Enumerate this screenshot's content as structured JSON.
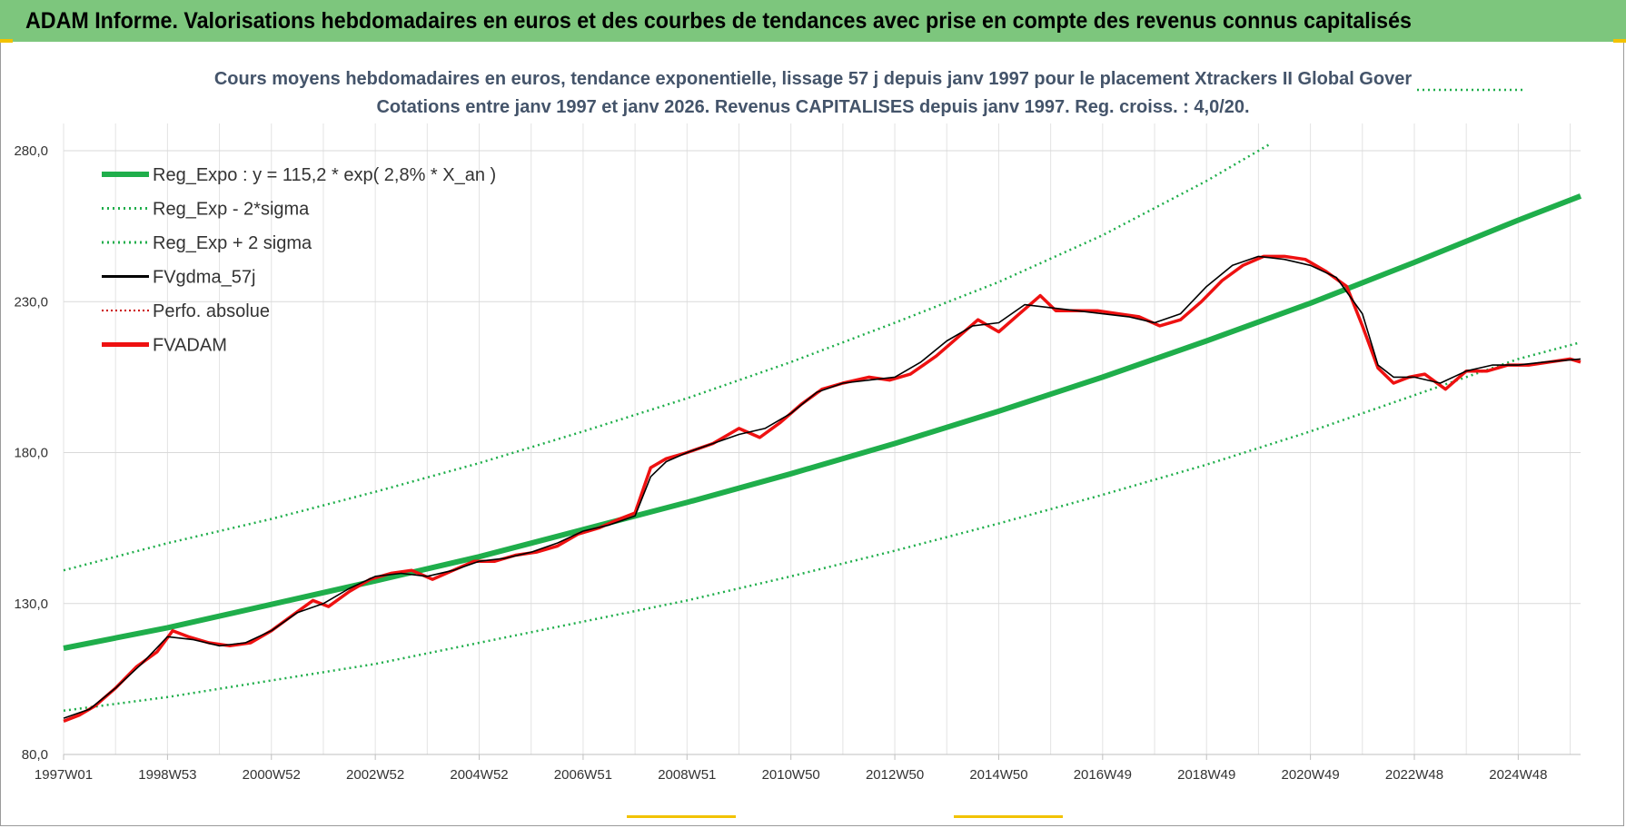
{
  "header": {
    "banner_title": "ADAM Informe. Valorisations hebdomadaires en euros et des courbes de tendances avec prise en compte des revenus connus capitalisés"
  },
  "colors": {
    "banner": "#7dc67d",
    "reg_expo": "#1fae4b",
    "fvadam": "#ee1111",
    "fvgdma": "#000000",
    "perfo": "#cc0000"
  },
  "chart_data": {
    "type": "line",
    "title": "Cours moyens hebdomadaires en euros, tendance exponentielle, lissage 57 j depuis janv 1997  pour le placement Xtrackers II Global Gover",
    "subtitle": "Cotations entre janv 1997 et janv 2026. Revenus CAPITALISES depuis janv 1997. Reg. croiss. : 4,0/20.",
    "x_tick_labels": [
      "1997W01",
      "1998W53",
      "2000W52",
      "2002W52",
      "2004W52",
      "2006W51",
      "2008W51",
      "2010W50",
      "2012W50",
      "2014W50",
      "2016W49",
      "2018W49",
      "2020W49",
      "2022W48",
      "2024W48"
    ],
    "x_range_years": [
      1997.0,
      2026.2
    ],
    "y_tick_labels": [
      "80,0",
      "130,0",
      "180,0",
      "230,0",
      "280,0"
    ],
    "y_ticks": [
      80,
      130,
      180,
      230,
      280
    ],
    "ylim": [
      80,
      280
    ],
    "grid": true,
    "legend_position": "top-left",
    "legend": [
      {
        "key": "reg_expo",
        "label": "Reg_Expo : y = 115,2 * exp( 2,8% *  X_an )",
        "style": "solid-thick"
      },
      {
        "key": "reg_minus",
        "label": "Reg_Exp - 2*sigma",
        "style": "dotted"
      },
      {
        "key": "reg_plus",
        "label": "Reg_Exp + 2 sigma",
        "style": "dotted"
      },
      {
        "key": "fvgdma",
        "label": "FVgdma_57j",
        "style": "solid-thin"
      },
      {
        "key": "perfo",
        "label": "Perfo. absolue",
        "style": "dotted-red"
      },
      {
        "key": "fvadam",
        "label": "FVADAM",
        "style": "solid-red"
      }
    ],
    "series": [
      {
        "key": "reg_expo",
        "name": "Reg_Expo : y = 115,2 * exp( 2,8% *  X_an )",
        "x": [
          1997,
          1999,
          2001,
          2003,
          2005,
          2007,
          2009,
          2011,
          2013,
          2015,
          2017,
          2019,
          2021,
          2023,
          2025,
          2026.2
        ],
        "y": [
          115.2,
          122.0,
          129.7,
          137.5,
          145.5,
          154.5,
          163.5,
          173.0,
          183.0,
          193.7,
          205.0,
          217.0,
          229.5,
          243.0,
          257.0,
          265.0
        ]
      },
      {
        "key": "reg_minus",
        "name": "Reg_Exp - 2*sigma",
        "x": [
          1997,
          1999,
          2001,
          2003,
          2005,
          2007,
          2009,
          2011,
          2013,
          2015,
          2017,
          2019,
          2021,
          2023,
          2025,
          2026.2
        ],
        "y": [
          94.5,
          99.0,
          104.5,
          110.0,
          117.0,
          124.0,
          131.0,
          139.0,
          147.5,
          156.5,
          166.0,
          176.0,
          187.0,
          199.0,
          211.0,
          216.5
        ]
      },
      {
        "key": "reg_plus",
        "name": "Reg_Exp + 2 sigma",
        "x": [
          1997,
          1999,
          2001,
          2003,
          2005,
          2007,
          2009,
          2011,
          2013,
          2015,
          2017,
          2019,
          2020.2
        ],
        "y": [
          141.0,
          150.0,
          158.0,
          167.0,
          176.5,
          187.0,
          198.0,
          210.0,
          223.0,
          236.5,
          252.0,
          270.0,
          282.0
        ]
      },
      {
        "key": "fvadam",
        "name": "FVADAM",
        "x": [
          1997.0,
          1997.3,
          1997.6,
          1998.0,
          1998.4,
          1998.8,
          1999.1,
          1999.4,
          1999.8,
          2000.2,
          2000.6,
          2001.0,
          2001.4,
          2001.8,
          2002.1,
          2002.5,
          2002.9,
          2003.3,
          2003.7,
          2004.1,
          2004.5,
          2004.9,
          2005.3,
          2005.7,
          2006.1,
          2006.5,
          2006.9,
          2007.3,
          2007.7,
          2008.0,
          2008.3,
          2008.6,
          2009.0,
          2009.5,
          2010.0,
          2010.4,
          2010.8,
          2011.2,
          2011.6,
          2012.0,
          2012.5,
          2012.9,
          2013.3,
          2013.8,
          2014.2,
          2014.6,
          2015.0,
          2015.4,
          2015.8,
          2016.1,
          2016.5,
          2016.9,
          2017.3,
          2017.7,
          2018.1,
          2018.5,
          2018.9,
          2019.3,
          2019.7,
          2020.1,
          2020.5,
          2020.9,
          2021.3,
          2021.7,
          2022.0,
          2022.3,
          2022.6,
          2022.9,
          2023.2,
          2023.6,
          2024.0,
          2024.4,
          2024.8,
          2025.2,
          2025.6,
          2026.0,
          2026.2
        ],
        "y": [
          91,
          93,
          96,
          102,
          109,
          114,
          121,
          119,
          117,
          116,
          117,
          121,
          126,
          131,
          129,
          134,
          138,
          140,
          141,
          138,
          141,
          144,
          144,
          146,
          147,
          149,
          153,
          155,
          158,
          160,
          175,
          178,
          180,
          183,
          188,
          185,
          190,
          196,
          201,
          203,
          205,
          204,
          206,
          212,
          218,
          224,
          220,
          226,
          232,
          227,
          227,
          227,
          226,
          225,
          222,
          224,
          230,
          237,
          242,
          245,
          245,
          244,
          240,
          235,
          222,
          208,
          203,
          205,
          206,
          201,
          207,
          207,
          209,
          209,
          210,
          211,
          210
        ]
      },
      {
        "key": "fvgdma",
        "name": "FVgdma_57j",
        "x": [
          1997.0,
          1997.5,
          1998.0,
          1998.5,
          1999.0,
          1999.5,
          2000.0,
          2000.5,
          2001.0,
          2001.5,
          2002.0,
          2002.5,
          2003.0,
          2003.5,
          2004.0,
          2004.5,
          2005.0,
          2005.5,
          2006.0,
          2006.5,
          2007.0,
          2007.5,
          2008.0,
          2008.3,
          2008.6,
          2009.0,
          2009.5,
          2010.0,
          2010.5,
          2011.0,
          2011.5,
          2012.0,
          2012.5,
          2013.0,
          2013.5,
          2014.0,
          2014.5,
          2015.0,
          2015.5,
          2016.0,
          2016.5,
          2017.0,
          2017.5,
          2018.0,
          2018.5,
          2019.0,
          2019.5,
          2020.0,
          2020.5,
          2021.0,
          2021.5,
          2022.0,
          2022.3,
          2022.6,
          2023.0,
          2023.5,
          2024.0,
          2024.5,
          2025.0,
          2025.5,
          2026.2
        ],
        "y": [
          92,
          95,
          102,
          110,
          119,
          118,
          116,
          117,
          121,
          127,
          130,
          135,
          139,
          140,
          139,
          141,
          144,
          145,
          147,
          150,
          154,
          156,
          159,
          172,
          177,
          180,
          183,
          186,
          188,
          193,
          200,
          203,
          204,
          205,
          210,
          217,
          222,
          223,
          229,
          228,
          227,
          226,
          225,
          223,
          226,
          235,
          242,
          245,
          244,
          242,
          238,
          226,
          209,
          205,
          205,
          203,
          207,
          209,
          209,
          210,
          211
        ]
      }
    ]
  }
}
